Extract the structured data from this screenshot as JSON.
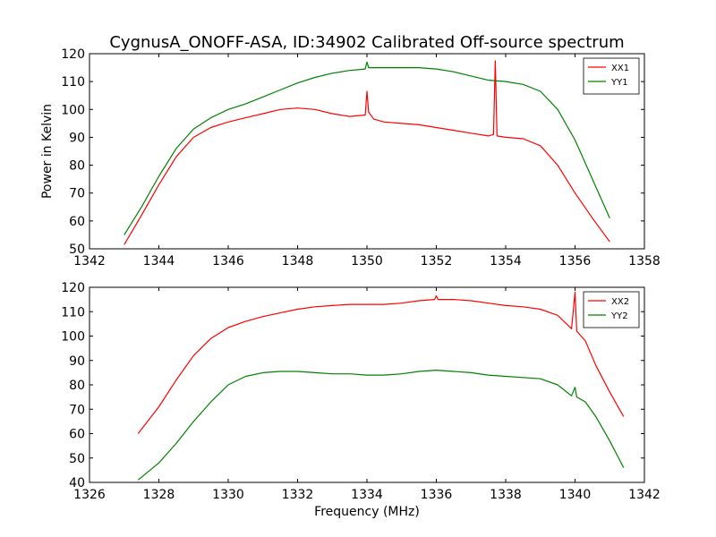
{
  "chart_data": [
    {
      "type": "line",
      "title": "CygnusA_ONOFF-ASA, ID:34902 Calibrated Off-source spectrum",
      "xlabel": "",
      "ylabel": "Power in Kelvin",
      "xlim": [
        1342,
        1358
      ],
      "ylim": [
        50,
        120
      ],
      "xticks": [
        "1342",
        "1344",
        "1346",
        "1348",
        "1350",
        "1352",
        "1354",
        "1356",
        "1358"
      ],
      "yticks": [
        "50",
        "60",
        "70",
        "80",
        "90",
        "100",
        "110",
        "120"
      ],
      "grid": false,
      "legend": "top-right",
      "series": [
        {
          "name": "XX1",
          "color": "#ff0000",
          "x": [
            1343.0,
            1343.5,
            1344.0,
            1344.5,
            1345.0,
            1345.5,
            1346.0,
            1346.5,
            1347.0,
            1347.5,
            1348.0,
            1348.5,
            1349.0,
            1349.5,
            1349.95,
            1350.0,
            1350.05,
            1350.2,
            1350.5,
            1351.0,
            1351.5,
            1352.0,
            1352.5,
            1353.0,
            1353.5,
            1353.65,
            1353.7,
            1353.75,
            1354.0,
            1354.5,
            1355.0,
            1355.5,
            1356.0,
            1356.5,
            1357.0
          ],
          "y": [
            51.5,
            62,
            73,
            83,
            90,
            93.5,
            95.5,
            97,
            98.5,
            100,
            100.5,
            100,
            98.5,
            97.5,
            98,
            106.5,
            99,
            96.5,
            95.5,
            95,
            94.5,
            93.5,
            92.5,
            91.5,
            90.5,
            91,
            117.5,
            90.5,
            90,
            89.5,
            87,
            80,
            70,
            61,
            52.5
          ]
        },
        {
          "name": "YY1",
          "color": "#008000",
          "x": [
            1343.0,
            1343.5,
            1344.0,
            1344.5,
            1345.0,
            1345.5,
            1346.0,
            1346.5,
            1347.0,
            1347.5,
            1348.0,
            1348.5,
            1349.0,
            1349.5,
            1349.95,
            1350.0,
            1350.05,
            1350.5,
            1351.0,
            1351.5,
            1352.0,
            1352.5,
            1353.0,
            1353.5,
            1354.0,
            1354.5,
            1355.0,
            1355.5,
            1356.0,
            1356.5,
            1357.0
          ],
          "y": [
            55,
            65,
            76,
            86,
            93,
            97,
            100,
            102,
            104.5,
            107,
            109.5,
            111.5,
            113,
            114,
            114.5,
            117,
            115,
            115,
            115,
            115,
            114.5,
            113.5,
            112,
            110.5,
            110,
            109,
            106.5,
            100,
            89,
            75,
            61
          ]
        }
      ]
    },
    {
      "type": "line",
      "title": "",
      "xlabel": "Frequency (MHz)",
      "ylabel": "",
      "xlim": [
        1326,
        1342
      ],
      "ylim": [
        40,
        120
      ],
      "xticks": [
        "1326",
        "1328",
        "1330",
        "1332",
        "1334",
        "1336",
        "1338",
        "1340",
        "1342"
      ],
      "yticks": [
        "40",
        "50",
        "60",
        "70",
        "80",
        "90",
        "100",
        "110",
        "120"
      ],
      "grid": false,
      "legend": "top-right",
      "series": [
        {
          "name": "XX2",
          "color": "#ff0000",
          "x": [
            1327.4,
            1328.0,
            1328.5,
            1329.0,
            1329.5,
            1330.0,
            1330.5,
            1331.0,
            1331.5,
            1332.0,
            1332.5,
            1333.0,
            1333.5,
            1334.0,
            1334.5,
            1335.0,
            1335.5,
            1335.95,
            1336.0,
            1336.05,
            1336.5,
            1337.0,
            1337.5,
            1338.0,
            1338.5,
            1339.0,
            1339.5,
            1339.9,
            1340.0,
            1340.05,
            1340.3,
            1340.6,
            1341.0,
            1341.4
          ],
          "y": [
            60,
            71,
            82,
            92,
            99,
            103.5,
            106,
            108,
            109.5,
            111,
            112,
            112.5,
            113,
            113,
            113,
            113.5,
            114.5,
            115,
            116.5,
            115,
            115,
            114.5,
            113.5,
            112.5,
            112,
            111,
            108.5,
            103,
            118,
            102,
            98,
            88,
            77,
            67
          ]
        },
        {
          "name": "YY2",
          "color": "#008000",
          "x": [
            1327.4,
            1328.0,
            1328.5,
            1329.0,
            1329.5,
            1330.0,
            1330.5,
            1331.0,
            1331.5,
            1332.0,
            1332.5,
            1333.0,
            1333.5,
            1334.0,
            1334.5,
            1335.0,
            1335.5,
            1336.0,
            1336.5,
            1337.0,
            1337.5,
            1338.0,
            1338.5,
            1339.0,
            1339.5,
            1339.9,
            1340.0,
            1340.05,
            1340.3,
            1340.6,
            1341.0,
            1341.4
          ],
          "y": [
            41,
            48,
            56,
            65,
            73,
            80,
            83.5,
            85,
            85.5,
            85.5,
            85,
            84.5,
            84.5,
            84,
            84,
            84.5,
            85.5,
            86,
            85.5,
            85,
            84,
            83.5,
            83,
            82.5,
            80,
            75.5,
            79,
            75,
            73,
            67,
            57,
            46
          ]
        }
      ]
    }
  ]
}
